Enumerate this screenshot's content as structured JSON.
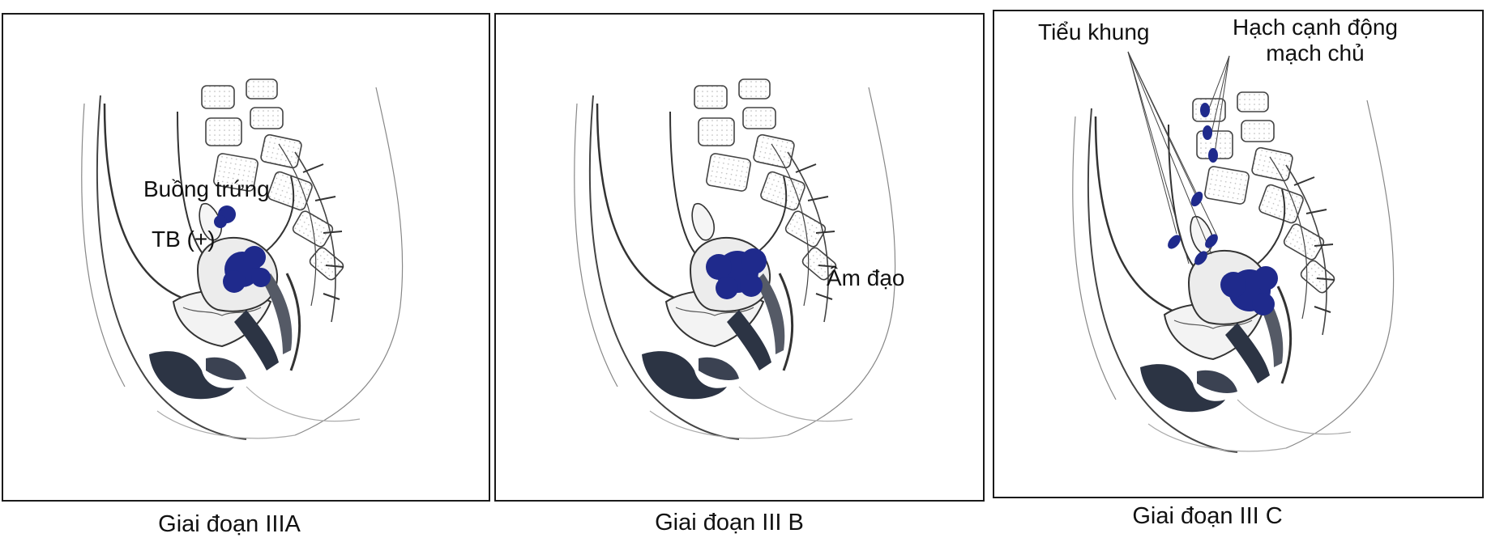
{
  "colors": {
    "tumor": "#1f2a8c",
    "outline": "#222222",
    "bone": "#e9e9e9",
    "tissue": "#9a9aa2",
    "dark": "#2c3444"
  },
  "panels": [
    {
      "caption": "Giai đoạn IIIA",
      "labels": {
        "ovary": "Buồng trứng",
        "tb": "TB (+)"
      }
    },
    {
      "caption": "Giai đoạn III B",
      "labels": {
        "vagina": "Âm đạo"
      }
    },
    {
      "caption": "Giai đoạn III C",
      "labels": {
        "pelvic": "Tiểu khung",
        "aortic_line1": "Hạch cạnh động",
        "aortic_line2": "mạch chủ"
      }
    }
  ]
}
